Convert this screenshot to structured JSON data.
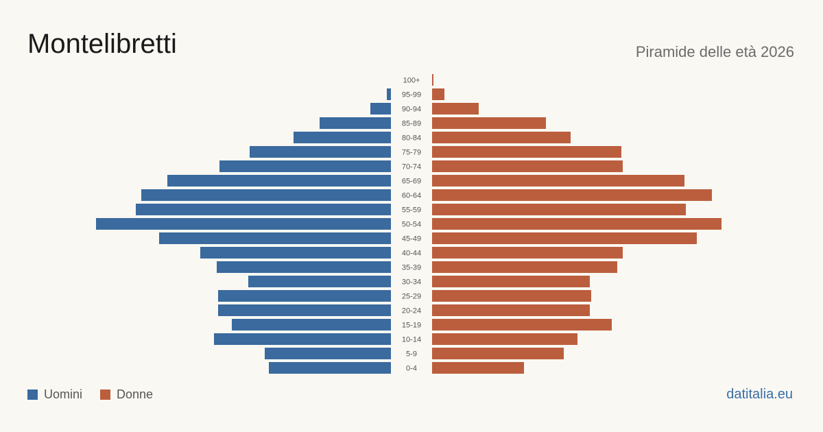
{
  "title": "Montelibretti",
  "subtitle": "Piramide delle età 2026",
  "brand": "datitalia.eu",
  "colors": {
    "men": "#3a6a9e",
    "women": "#bb5e3e"
  },
  "legend": {
    "men_label": "Uomini",
    "women_label": "Donne"
  },
  "chart_data": {
    "type": "bar",
    "orientation": "horizontal-pyramid",
    "categories": [
      "100+",
      "95-99",
      "90-94",
      "85-89",
      "80-84",
      "75-79",
      "70-74",
      "65-69",
      "60-64",
      "55-59",
      "50-54",
      "45-49",
      "40-44",
      "35-39",
      "30-34",
      "25-29",
      "20-24",
      "15-19",
      "10-14",
      "5-9",
      "0-4"
    ],
    "series": [
      {
        "name": "Uomini",
        "values": [
          0,
          3,
          15,
          52,
          71,
          103,
          125,
          163,
          182,
          186,
          215,
          169,
          139,
          127,
          104,
          126,
          126,
          116,
          129,
          92,
          89
        ]
      },
      {
        "name": "Donne",
        "values": [
          1,
          9,
          34,
          83,
          101,
          138,
          139,
          184,
          204,
          185,
          211,
          193,
          139,
          135,
          115,
          116,
          115,
          131,
          106,
          96,
          67
        ]
      }
    ]
  }
}
